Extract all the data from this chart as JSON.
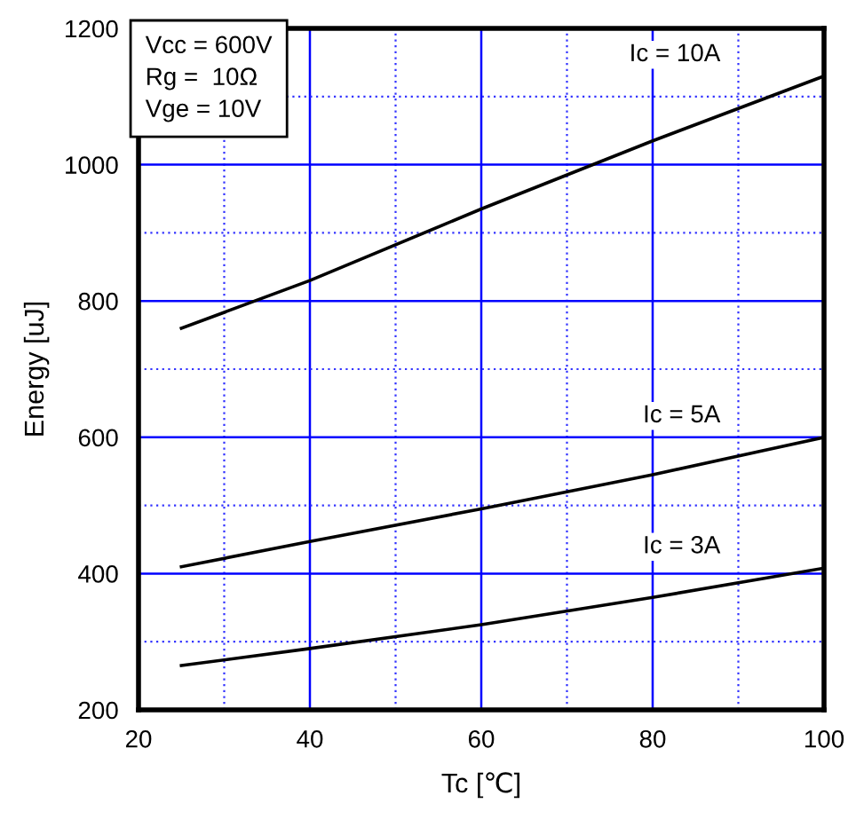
{
  "chart_data": {
    "type": "line",
    "xlabel": "Tc [℃]",
    "ylabel": "Energy [uJ]",
    "x": [
      25,
      40,
      60,
      80,
      100
    ],
    "series": [
      {
        "name": "Ic = 10A",
        "color": "#000000",
        "values": [
          760,
          830,
          935,
          1035,
          1130
        ]
      },
      {
        "name": "Ic = 5A",
        "color": "#000000",
        "values": [
          410,
          447,
          495,
          545,
          600
        ]
      },
      {
        "name": "Ic = 3A",
        "color": "#000000",
        "values": [
          265,
          290,
          325,
          365,
          408
        ]
      }
    ],
    "xlim": [
      20,
      100
    ],
    "ylim": [
      200,
      1200
    ],
    "xticks": [
      20,
      {
        "value": 30,
        "label": null
      },
      40,
      {
        "value": 50,
        "label": null
      },
      60,
      {
        "value": 70,
        "label": null
      },
      80,
      {
        "value": 90,
        "label": null
      },
      100
    ],
    "yticks": [
      200,
      {
        "value": 300,
        "label": null
      },
      400,
      {
        "value": 500,
        "label": null
      },
      600,
      {
        "value": 700,
        "label": null
      },
      800,
      {
        "value": 900,
        "label": null
      },
      1000,
      {
        "value": 1100,
        "label": null
      },
      1200
    ],
    "grid": true,
    "legend": false,
    "marker": "none",
    "line_style": "solid",
    "annotations": [
      "Vcc = 600V\nRg =  10Ω\nVge = 10V"
    ]
  }
}
